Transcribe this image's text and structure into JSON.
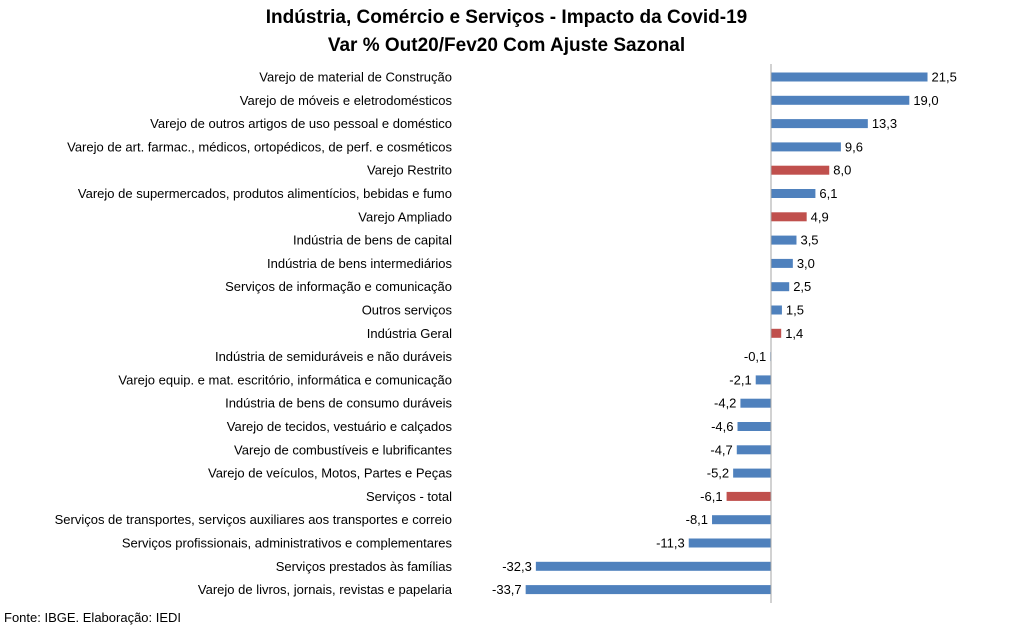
{
  "chart_data": {
    "type": "bar",
    "orientation": "horizontal",
    "title": "Indústria, Comércio e Serviços - Impacto da Covid-19",
    "subtitle": "Var % Out20/Fev20 Com Ajuste Sazonal",
    "categories": [
      "Varejo de material de Construção",
      "Varejo de móveis e eletrodomésticos",
      "Varejo de outros artigos de uso pessoal e doméstico",
      "Varejo de art. farmac., médicos, ortopédicos, de perf.  e cosméticos",
      "Varejo Restrito",
      "Varejo de supermercados, produtos alimentícios, bebidas e fumo",
      "Varejo Ampliado",
      "Indústria de bens de capital",
      "Indústria de bens intermediários",
      "Serviços de informação e comunicação",
      "Outros serviços",
      "Indústria Geral",
      "Indústria de semiduráveis e não duráveis",
      "Varejo equip. e mat. escritório, informática e comunicação",
      "Indústria de bens de consumo duráveis",
      "Varejo de tecidos, vestuário e calçados",
      "Varejo de combustíveis e lubrificantes",
      "Varejo de veículos, Motos, Partes e Peças",
      "Serviços - total",
      "Serviços de transportes, serviços auxiliares aos transportes e correio",
      "Serviços profissionais, administrativos e complementares",
      "Serviços prestados às famílias",
      "Varejo de livros, jornais, revistas e papelaria"
    ],
    "values": [
      21.5,
      19.0,
      13.3,
      9.6,
      8.0,
      6.1,
      4.9,
      3.5,
      3.0,
      2.5,
      1.5,
      1.4,
      -0.1,
      -2.1,
      -4.2,
      -4.6,
      -4.7,
      -5.2,
      -6.1,
      -8.1,
      -11.3,
      -32.3,
      -33.7
    ],
    "value_labels": [
      "21,5",
      "19,0",
      "13,3",
      "9,6",
      "8,0",
      "6,1",
      "4,9",
      "3,5",
      "3,0",
      "2,5",
      "1,5",
      "1,4",
      "-0,1",
      "-2,1",
      "-4,2",
      "-4,6",
      "-4,7",
      "-5,2",
      "-6,1",
      "-8,1",
      "-11,3",
      "-32,3",
      "-33,7"
    ],
    "highlight": [
      false,
      false,
      false,
      false,
      true,
      false,
      true,
      false,
      false,
      false,
      false,
      true,
      false,
      false,
      false,
      false,
      false,
      false,
      true,
      false,
      false,
      false,
      false
    ],
    "colors": {
      "default": "#4f81bd",
      "highlight": "#c0504d",
      "axis": "#a6a6a6"
    },
    "grid": false,
    "legend": false
  },
  "source_note": "Fonte: IBGE. Elaboração: IEDI"
}
